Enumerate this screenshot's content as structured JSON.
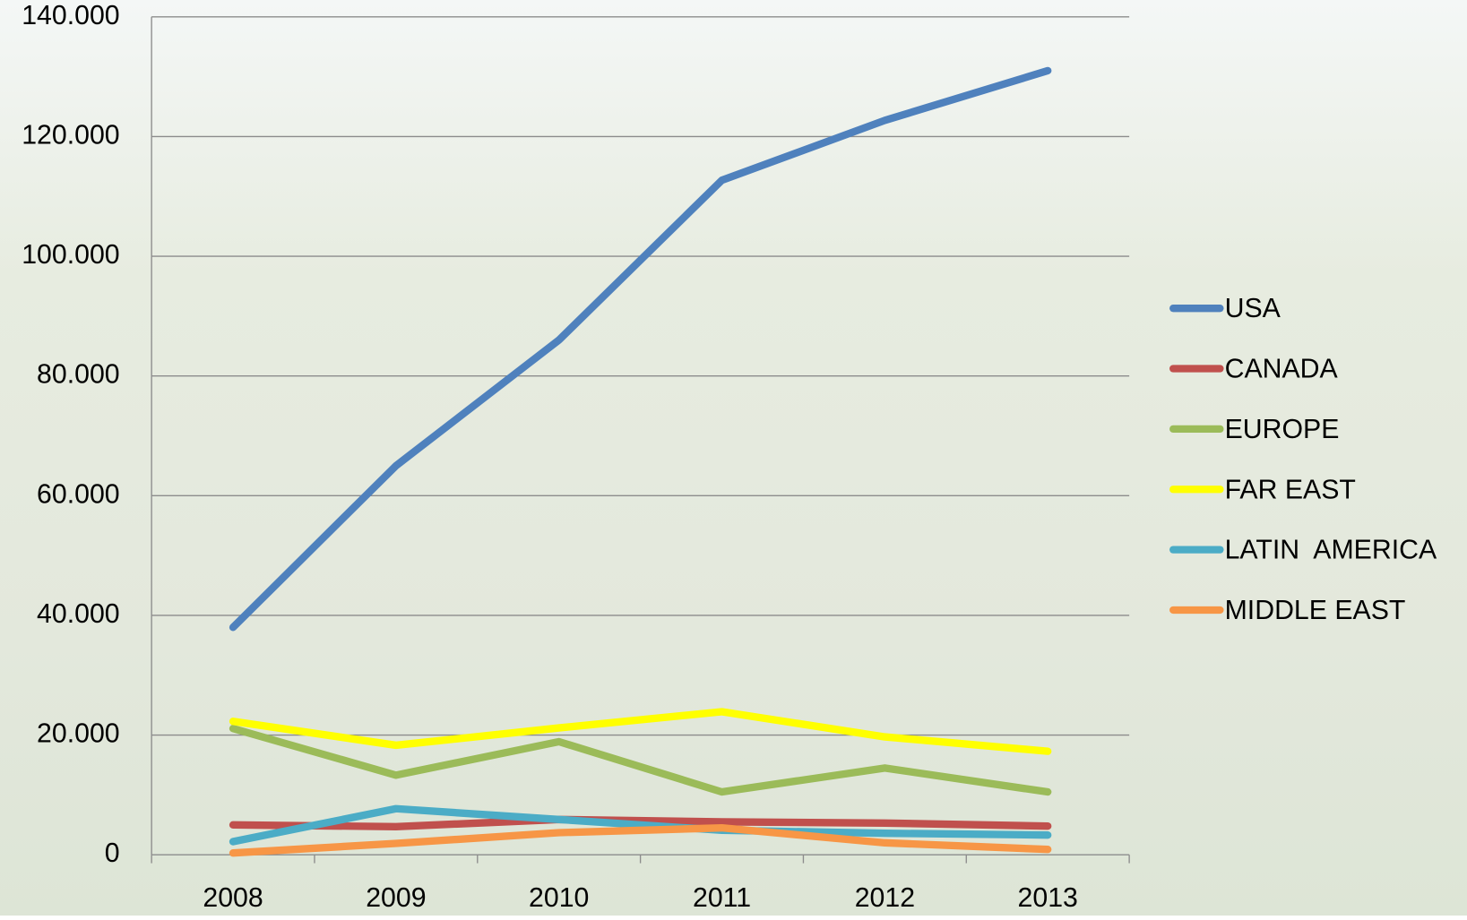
{
  "chart_data": {
    "type": "line",
    "categories": [
      "2008",
      "2009",
      "2010",
      "2011",
      "2012",
      "2013"
    ],
    "series": [
      {
        "name": "USA",
        "color": "#4f81bd",
        "values": [
          38000,
          65000,
          86000,
          112700,
          122700,
          131000
        ]
      },
      {
        "name": "CANADA",
        "color": "#c0504d",
        "values": [
          5000,
          4700,
          5900,
          5500,
          5300,
          4800
        ]
      },
      {
        "name": "EUROPE",
        "color": "#9bbb59",
        "values": [
          21100,
          13300,
          18900,
          10500,
          14500,
          10500
        ]
      },
      {
        "name": "FAR EAST",
        "color": "#ffff00",
        "values": [
          22300,
          18300,
          21200,
          23900,
          19700,
          17300
        ]
      },
      {
        "name": "LATIN  AMERICA",
        "color": "#4bacc6",
        "values": [
          2200,
          7700,
          5900,
          4100,
          3600,
          3300
        ]
      },
      {
        "name": "MIDDLE EAST",
        "color": "#f79646",
        "values": [
          300,
          1900,
          3700,
          4500,
          2000,
          900
        ]
      }
    ],
    "ylim": [
      0,
      140000
    ],
    "yticks": [
      0,
      {
        "value": 20000,
        "label": "20.000"
      },
      {
        "value": 40000,
        "label": "40.000"
      },
      {
        "value": 60000,
        "label": "60.000"
      },
      {
        "value": 80000,
        "label": "80.000"
      },
      {
        "value": 100000,
        "label": "100.000"
      },
      {
        "value": 120000,
        "label": "120.000"
      },
      {
        "value": 140000,
        "label": "140.000"
      }
    ],
    "grid": true,
    "legend": "right"
  }
}
